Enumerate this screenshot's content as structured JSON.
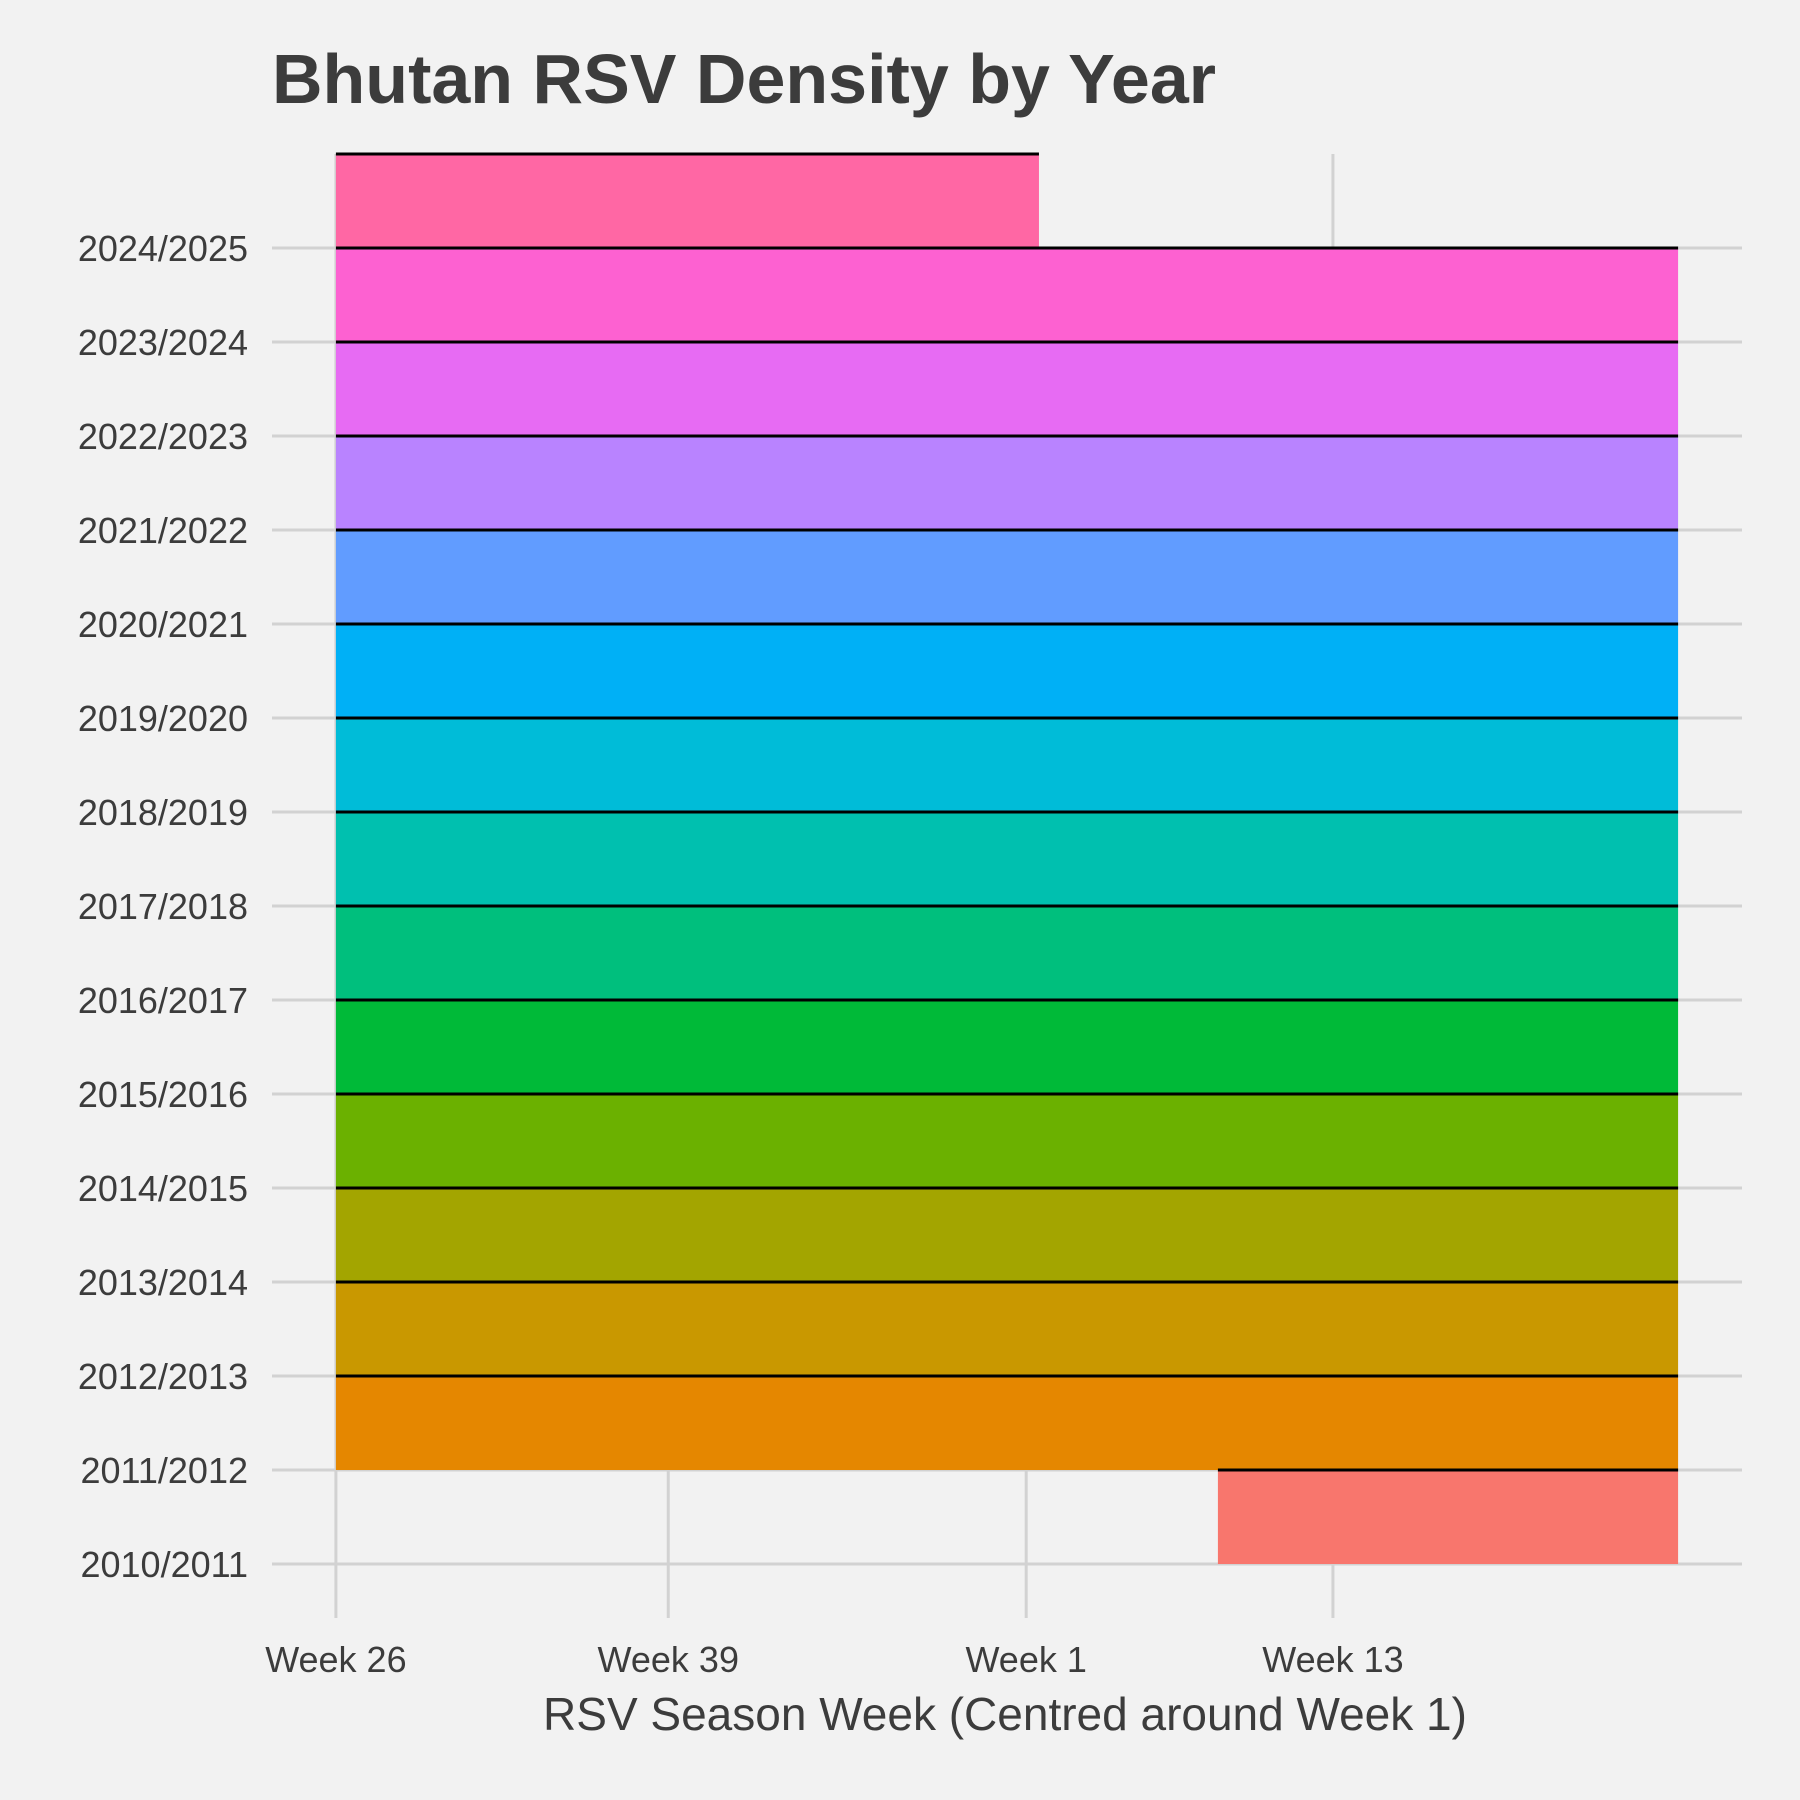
{
  "chart_data": {
    "type": "area",
    "title": "Bhutan RSV Density by Year",
    "xlabel": "RSV Season Week (Centred around Week 1)",
    "ylabel": "",
    "x_ticks": [
      "Week 26",
      "Week 39",
      "Week 1",
      "Week 13"
    ],
    "x_tick_values": [
      26,
      39,
      53,
      65
    ],
    "xlim": [
      23.5,
      81
    ],
    "x_unit_note": "",
    "categories": [
      "2010/2011",
      "2011/2012",
      "2012/2013",
      "2013/2014",
      "2014/2015",
      "2015/2016",
      "2016/2017",
      "2017/2018",
      "2018/2019",
      "2019/2020",
      "2020/2021",
      "2021/2022",
      "2022/2023",
      "2023/2024",
      "2024/2025"
    ],
    "series": [
      {
        "category": "2010/2011",
        "x_start": 60.5,
        "x_end": 78.5,
        "color": "#f8766d"
      },
      {
        "category": "2011/2012",
        "x_start": 26,
        "x_end": 78.5,
        "color": "#e58700"
      },
      {
        "category": "2012/2013",
        "x_start": 26,
        "x_end": 78.5,
        "color": "#c99800"
      },
      {
        "category": "2013/2014",
        "x_start": 26,
        "x_end": 78.5,
        "color": "#a3a500"
      },
      {
        "category": "2014/2015",
        "x_start": 26,
        "x_end": 78.5,
        "color": "#6bb100"
      },
      {
        "category": "2015/2016",
        "x_start": 26,
        "x_end": 78.5,
        "color": "#00ba38"
      },
      {
        "category": "2016/2017",
        "x_start": 26,
        "x_end": 78.5,
        "color": "#00bf7d"
      },
      {
        "category": "2017/2018",
        "x_start": 26,
        "x_end": 78.5,
        "color": "#00c0af"
      },
      {
        "category": "2018/2019",
        "x_start": 26,
        "x_end": 78.5,
        "color": "#00bcd8"
      },
      {
        "category": "2019/2020",
        "x_start": 26,
        "x_end": 78.5,
        "color": "#00b0f6"
      },
      {
        "category": "2020/2021",
        "x_start": 26,
        "x_end": 78.5,
        "color": "#619cff"
      },
      {
        "category": "2021/2022",
        "x_start": 26,
        "x_end": 78.5,
        "color": "#b983ff"
      },
      {
        "category": "2022/2023",
        "x_start": 26,
        "x_end": 78.5,
        "color": "#e76bf3"
      },
      {
        "category": "2023/2024",
        "x_start": 26,
        "x_end": 78.5,
        "color": "#fd61d1"
      },
      {
        "category": "2024/2025",
        "x_start": 26,
        "x_end": 53.5,
        "color": "#ff67a4"
      }
    ],
    "ridge_height": 1,
    "grid": true,
    "legend": "none",
    "colors": {
      "background": "#f2f2f2",
      "grid": "#d2d2d2",
      "text": "#3c3c3c",
      "outline": "#000000"
    }
  }
}
